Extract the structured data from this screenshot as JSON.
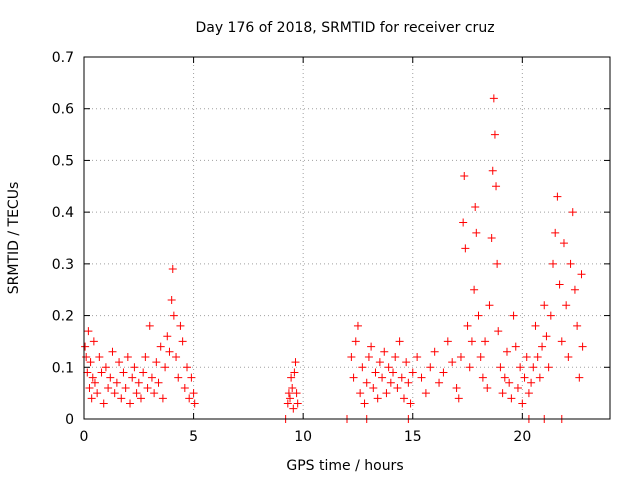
{
  "chart_data": {
    "type": "scatter",
    "title": "Day 176 of 2018, SRMTID for receiver cruz",
    "xlabel": "GPS time / hours",
    "ylabel": "SRMTID / TECUs",
    "xlim": [
      0,
      24
    ],
    "ylim": [
      0,
      0.7
    ],
    "xticks": [
      0,
      5,
      10,
      15,
      20
    ],
    "yticks": [
      0,
      0.1,
      0.2,
      0.3,
      0.4,
      0.5,
      0.6,
      0.7
    ],
    "grid": true,
    "marker": "plus",
    "color": "#ff0000",
    "series": [
      {
        "name": "SRMTID",
        "points": [
          [
            0.05,
            0.14
          ],
          [
            0.1,
            0.12
          ],
          [
            0.15,
            0.09
          ],
          [
            0.2,
            0.17
          ],
          [
            0.25,
            0.06
          ],
          [
            0.3,
            0.11
          ],
          [
            0.35,
            0.04
          ],
          [
            0.4,
            0.08
          ],
          [
            0.45,
            0.15
          ],
          [
            0.5,
            0.07
          ],
          [
            0.6,
            0.05
          ],
          [
            0.7,
            0.12
          ],
          [
            0.8,
            0.09
          ],
          [
            0.9,
            0.03
          ],
          [
            1.0,
            0.1
          ],
          [
            1.1,
            0.06
          ],
          [
            1.2,
            0.08
          ],
          [
            1.3,
            0.13
          ],
          [
            1.4,
            0.05
          ],
          [
            1.5,
            0.07
          ],
          [
            1.6,
            0.11
          ],
          [
            1.7,
            0.04
          ],
          [
            1.8,
            0.09
          ],
          [
            1.9,
            0.06
          ],
          [
            2.0,
            0.12
          ],
          [
            2.1,
            0.03
          ],
          [
            2.2,
            0.08
          ],
          [
            2.3,
            0.1
          ],
          [
            2.4,
            0.05
          ],
          [
            2.5,
            0.07
          ],
          [
            2.6,
            0.04
          ],
          [
            2.7,
            0.09
          ],
          [
            2.8,
            0.12
          ],
          [
            2.9,
            0.06
          ],
          [
            3.0,
            0.18
          ],
          [
            3.1,
            0.08
          ],
          [
            3.2,
            0.05
          ],
          [
            3.3,
            0.11
          ],
          [
            3.4,
            0.07
          ],
          [
            3.5,
            0.14
          ],
          [
            3.6,
            0.04
          ],
          [
            3.7,
            0.1
          ],
          [
            3.8,
            0.16
          ],
          [
            3.9,
            0.13
          ],
          [
            4.0,
            0.23
          ],
          [
            4.05,
            0.29
          ],
          [
            4.1,
            0.2
          ],
          [
            4.2,
            0.12
          ],
          [
            4.3,
            0.08
          ],
          [
            4.4,
            0.18
          ],
          [
            4.5,
            0.15
          ],
          [
            4.6,
            0.06
          ],
          [
            4.7,
            0.1
          ],
          [
            4.8,
            0.04
          ],
          [
            4.9,
            0.08
          ],
          [
            5.0,
            0.05
          ],
          [
            5.05,
            0.03
          ],
          [
            9.3,
            0.03
          ],
          [
            9.35,
            0.05
          ],
          [
            9.4,
            0.04
          ],
          [
            9.45,
            0.08
          ],
          [
            9.5,
            0.06
          ],
          [
            9.55,
            0.02
          ],
          [
            9.6,
            0.09
          ],
          [
            9.65,
            0.11
          ],
          [
            9.7,
            0.05
          ],
          [
            9.75,
            0.03
          ],
          [
            12.2,
            0.12
          ],
          [
            12.3,
            0.08
          ],
          [
            12.4,
            0.15
          ],
          [
            12.5,
            0.18
          ],
          [
            12.6,
            0.05
          ],
          [
            12.7,
            0.1
          ],
          [
            12.8,
            0.03
          ],
          [
            12.9,
            0.07
          ],
          [
            13.0,
            0.12
          ],
          [
            13.1,
            0.14
          ],
          [
            13.2,
            0.06
          ],
          [
            13.3,
            0.09
          ],
          [
            13.4,
            0.04
          ],
          [
            13.5,
            0.11
          ],
          [
            13.6,
            0.08
          ],
          [
            13.7,
            0.13
          ],
          [
            13.8,
            0.05
          ],
          [
            13.9,
            0.1
          ],
          [
            14.0,
            0.07
          ],
          [
            14.1,
            0.09
          ],
          [
            14.2,
            0.12
          ],
          [
            14.3,
            0.06
          ],
          [
            14.4,
            0.15
          ],
          [
            14.5,
            0.08
          ],
          [
            14.6,
            0.04
          ],
          [
            14.7,
            0.11
          ],
          [
            14.8,
            0.07
          ],
          [
            14.9,
            0.03
          ],
          [
            15.0,
            0.09
          ],
          [
            15.2,
            0.12
          ],
          [
            15.4,
            0.08
          ],
          [
            15.6,
            0.05
          ],
          [
            15.8,
            0.1
          ],
          [
            16.0,
            0.13
          ],
          [
            16.2,
            0.07
          ],
          [
            16.4,
            0.09
          ],
          [
            16.6,
            0.15
          ],
          [
            16.8,
            0.11
          ],
          [
            17.0,
            0.06
          ],
          [
            17.1,
            0.04
          ],
          [
            17.2,
            0.12
          ],
          [
            17.3,
            0.38
          ],
          [
            17.35,
            0.47
          ],
          [
            17.4,
            0.33
          ],
          [
            17.5,
            0.18
          ],
          [
            17.6,
            0.1
          ],
          [
            17.7,
            0.15
          ],
          [
            17.8,
            0.25
          ],
          [
            17.85,
            0.41
          ],
          [
            17.9,
            0.36
          ],
          [
            18.0,
            0.2
          ],
          [
            18.1,
            0.12
          ],
          [
            18.2,
            0.08
          ],
          [
            18.3,
            0.15
          ],
          [
            18.4,
            0.06
          ],
          [
            18.5,
            0.22
          ],
          [
            18.6,
            0.35
          ],
          [
            18.65,
            0.48
          ],
          [
            18.7,
            0.62
          ],
          [
            18.75,
            0.55
          ],
          [
            18.8,
            0.45
          ],
          [
            18.85,
            0.3
          ],
          [
            18.9,
            0.17
          ],
          [
            19.0,
            0.1
          ],
          [
            19.1,
            0.05
          ],
          [
            19.2,
            0.08
          ],
          [
            19.3,
            0.13
          ],
          [
            19.4,
            0.07
          ],
          [
            19.5,
            0.04
          ],
          [
            19.6,
            0.2
          ],
          [
            19.7,
            0.14
          ],
          [
            19.8,
            0.06
          ],
          [
            19.9,
            0.1
          ],
          [
            20.0,
            0.03
          ],
          [
            20.1,
            0.08
          ],
          [
            20.2,
            0.12
          ],
          [
            20.3,
            0.05
          ],
          [
            20.4,
            0.07
          ],
          [
            20.5,
            0.1
          ],
          [
            20.6,
            0.18
          ],
          [
            20.7,
            0.12
          ],
          [
            20.8,
            0.08
          ],
          [
            20.9,
            0.14
          ],
          [
            21.0,
            0.22
          ],
          [
            21.1,
            0.16
          ],
          [
            21.2,
            0.1
          ],
          [
            21.3,
            0.2
          ],
          [
            21.4,
            0.3
          ],
          [
            21.5,
            0.36
          ],
          [
            21.6,
            0.43
          ],
          [
            21.7,
            0.26
          ],
          [
            21.8,
            0.15
          ],
          [
            21.9,
            0.34
          ],
          [
            22.0,
            0.22
          ],
          [
            22.1,
            0.12
          ],
          [
            22.2,
            0.3
          ],
          [
            22.3,
            0.4
          ],
          [
            22.4,
            0.25
          ],
          [
            22.5,
            0.18
          ],
          [
            22.6,
            0.08
          ],
          [
            22.7,
            0.28
          ],
          [
            22.75,
            0.14
          ],
          [
            9.2,
            0.0
          ],
          [
            12.0,
            0.0
          ],
          [
            12.9,
            0.0
          ],
          [
            14.8,
            0.0
          ],
          [
            20.3,
            0.0
          ],
          [
            21.0,
            0.0
          ],
          [
            21.8,
            0.0
          ]
        ]
      }
    ]
  }
}
